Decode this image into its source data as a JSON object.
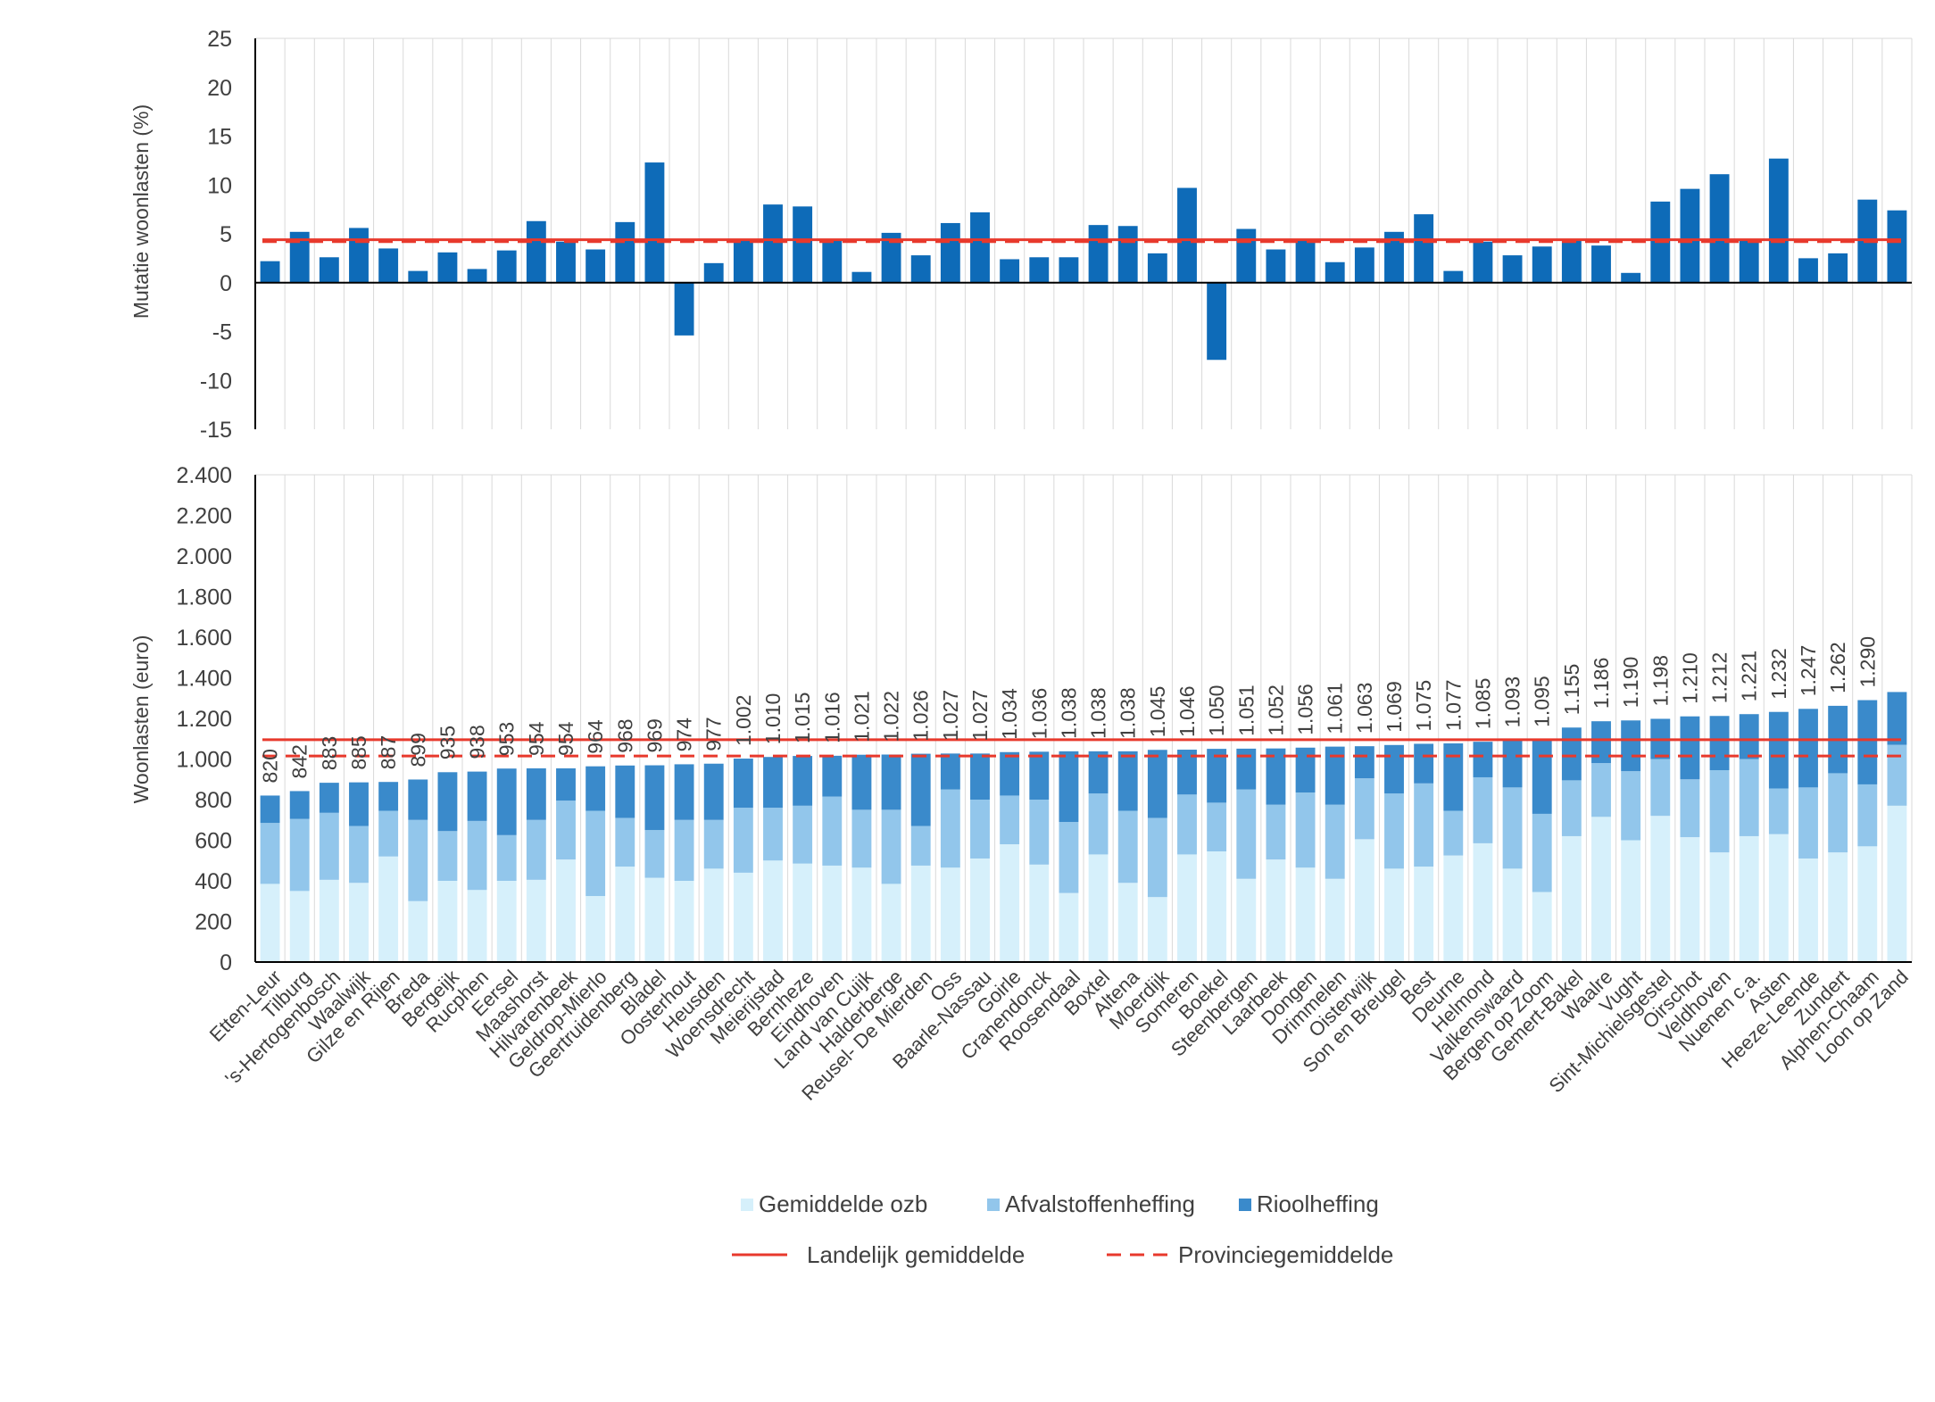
{
  "chart_data": [
    {
      "type": "bar",
      "ylabel": "Mutatie woonlasten  (%)",
      "ylim": [
        -15,
        25
      ],
      "yticks": [
        25,
        20,
        15,
        10,
        5,
        0,
        -5,
        -10,
        -15
      ],
      "ytick_labels": [
        "25",
        "20",
        "15",
        "10",
        "5",
        "0",
        "-5",
        "-10",
        "-15"
      ],
      "values": [
        2.2,
        5.2,
        2.6,
        5.6,
        3.5,
        1.2,
        3.1,
        1.4,
        3.3,
        6.3,
        4.2,
        3.4,
        6.2,
        12.3,
        -5.4,
        2.0,
        4.4,
        8.0,
        7.8,
        4.4,
        1.1,
        5.1,
        2.8,
        6.1,
        7.2,
        2.4,
        2.6,
        2.6,
        5.9,
        5.8,
        3.0,
        9.7,
        -7.9,
        5.5,
        3.4,
        4.3,
        2.1,
        3.6,
        5.2,
        7.0,
        1.2,
        4.2,
        2.8,
        3.7,
        4.4,
        3.8,
        1.0,
        8.3,
        9.6,
        11.1,
        4.4,
        12.7,
        2.5,
        3.0,
        8.5,
        7.4
      ],
      "landelijk": 4.4,
      "provincie": 4.2,
      "colors": {
        "bar": "#0E6BB8",
        "line": "#E8392C"
      }
    },
    {
      "type": "stacked-bar",
      "ylabel": "Woonlasten  (euro)",
      "ylim": [
        0,
        2400
      ],
      "yticks": [
        2400,
        2200,
        2000,
        1800,
        1600,
        1400,
        1200,
        1000,
        800,
        600,
        400,
        200,
        0
      ],
      "ytick_labels": [
        "2.400",
        "2.200",
        "2.000",
        "1.800",
        "1.600",
        "1.400",
        "1.200",
        "1.000",
        "800",
        "600",
        "400",
        "200",
        "0"
      ],
      "categories": [
        "Etten-Leur",
        "Tilburg",
        "'s-Hertogenbosch",
        "Waalwijk",
        "Gilze en Rijen",
        "Breda",
        "Bergeijk",
        "Rucphen",
        "Eersel",
        "Maashorst",
        "Hilvarenbeek",
        "Geldrop-Mierlo",
        "Geertruidenberg",
        "Bladel",
        "Oosterhout",
        "Heusden",
        "Woensdrecht",
        "Meierijstad",
        "Bernheze",
        "Eindhoven",
        "Land van Cuijk",
        "Halderberge",
        "Reusel- De Mierden",
        "Oss",
        "Baarle-Nassau",
        "Goirle",
        "Cranendonck",
        "Roosendaal",
        "Boxtel",
        "Altena",
        "Moerdijk",
        "Someren",
        "Boekel",
        "Steenbergen",
        "Laarbeek",
        "Dongen",
        "Drimmelen",
        "Oisterwijk",
        "Son en Breugel",
        "Best",
        "Deurne",
        "Helmond",
        "Valkenswaard",
        "Bergen op Zoom",
        "Gemert-Bakel",
        "Waalre",
        "Vught",
        "Sint-Michielsgestel",
        "Oirschot",
        "Veldhoven",
        "Nuenen c.a.",
        "Asten",
        "Heeze-Leende",
        "Zundert",
        "Alphen-Chaam",
        "Loon op Zand"
      ],
      "totals": [
        820,
        842,
        883,
        885,
        887,
        899,
        935,
        938,
        953,
        954,
        954,
        964,
        968,
        969,
        974,
        977,
        1002,
        1010,
        1015,
        1016,
        1021,
        1022,
        1026,
        1027,
        1027,
        1034,
        1036,
        1038,
        1038,
        1038,
        1045,
        1046,
        1050,
        1051,
        1052,
        1056,
        1061,
        1063,
        1069,
        1075,
        1077,
        1085,
        1093,
        1095,
        1155,
        1186,
        1190,
        1198,
        1210,
        1212,
        1221,
        1232,
        1247,
        1262,
        1290,
        1330
      ],
      "data_labels": [
        "820",
        "842",
        "883",
        "885",
        "887",
        "899",
        "935",
        "938",
        "953",
        "954",
        "954",
        "964",
        "968",
        "969",
        "974",
        "977",
        "1.002",
        "1.010",
        "1.015",
        "1.016",
        "1.021",
        "1.022",
        "1.026",
        "1.027",
        "1.027",
        "1.034",
        "1.036",
        "1.038",
        "1.038",
        "1.038",
        "1.045",
        "1.046",
        "1.050",
        "1.051",
        "1.052",
        "1.056",
        "1.061",
        "1.063",
        "1.069",
        "1.075",
        "1.077",
        "1.085",
        "1.093",
        "1.095",
        "1.155",
        "1.186",
        "1.190",
        "1.198",
        "1.210",
        "1.212",
        "1.221",
        "1.232",
        "1.247",
        "1.262",
        "1.290",
        ""
      ],
      "series": [
        {
          "name": "Gemiddelde ozb",
          "color": "#D6F0FB",
          "values": [
            385,
            350,
            405,
            390,
            520,
            300,
            400,
            355,
            400,
            405,
            505,
            325,
            470,
            415,
            400,
            460,
            440,
            500,
            485,
            475,
            465,
            385,
            475,
            465,
            510,
            580,
            480,
            340,
            530,
            390,
            320,
            530,
            545,
            410,
            505,
            465,
            410,
            605,
            460,
            470,
            525,
            585,
            460,
            345,
            620,
            715,
            600,
            720,
            615,
            540,
            620,
            630,
            510,
            540,
            570,
            770
          ]
        },
        {
          "name": "Afvalstoffenheffing",
          "color": "#92C6EB",
          "values": [
            300,
            355,
            330,
            280,
            225,
            400,
            245,
            340,
            225,
            295,
            290,
            420,
            240,
            235,
            300,
            240,
            320,
            260,
            285,
            340,
            285,
            365,
            195,
            385,
            290,
            240,
            320,
            350,
            300,
            355,
            390,
            295,
            240,
            440,
            270,
            370,
            365,
            300,
            370,
            410,
            220,
            325,
            400,
            385,
            275,
            265,
            340,
            280,
            285,
            405,
            380,
            225,
            350,
            390,
            305,
            300
          ]
        },
        {
          "name": "Rioolheffing",
          "color": "#3A8ACB",
          "values": [
            135,
            137,
            148,
            215,
            142,
            199,
            290,
            243,
            328,
            254,
            159,
            219,
            258,
            319,
            274,
            277,
            242,
            250,
            245,
            201,
            271,
            272,
            356,
            177,
            227,
            214,
            236,
            348,
            208,
            293,
            335,
            221,
            265,
            201,
            277,
            221,
            286,
            158,
            239,
            195,
            332,
            175,
            233,
            365,
            260,
            206,
            250,
            198,
            310,
            267,
            221,
            377,
            387,
            332,
            415,
            260
          ]
        }
      ],
      "landelijk": 1095,
      "provincie": 1015
    }
  ],
  "legend": {
    "ozb": "Gemiddelde ozb",
    "afval": "Afvalstoffenheffing",
    "riool": "Rioolheffing",
    "landelijk": "Landelijk gemiddelde",
    "provincie": "Provinciegemiddelde"
  }
}
